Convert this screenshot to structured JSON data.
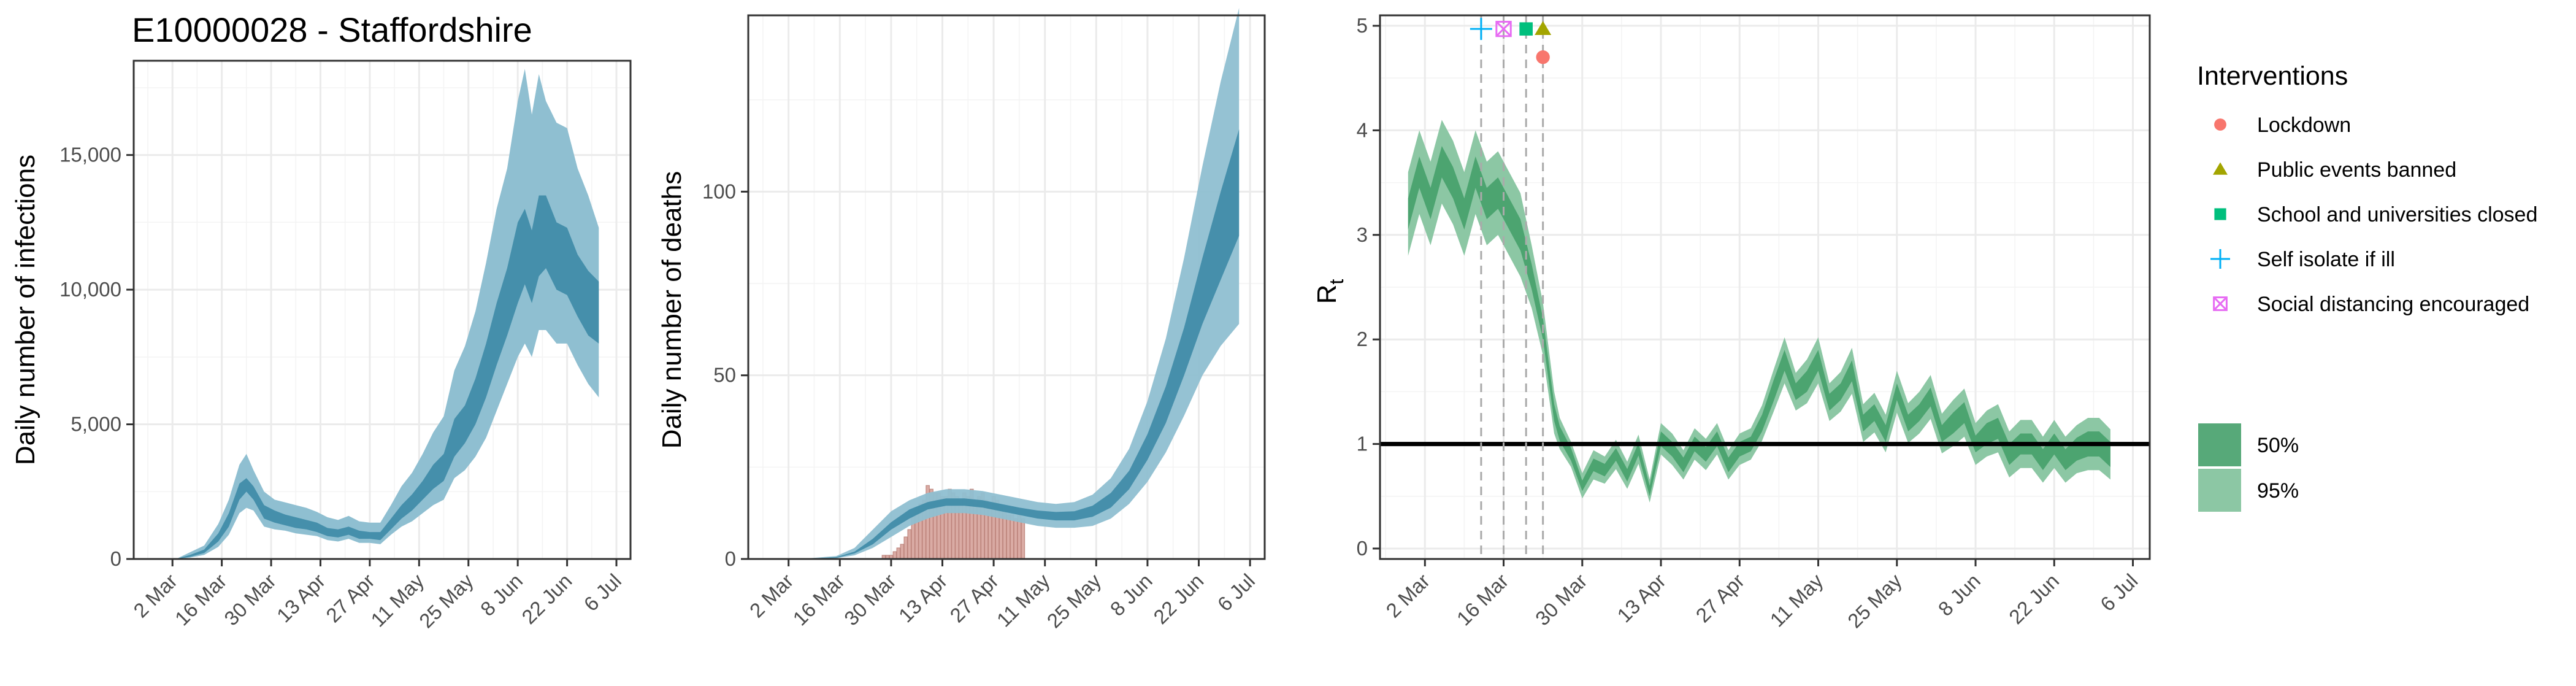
{
  "title": "E10000028 - Staffordshire",
  "colors": {
    "blue_dark": "#3d89a6",
    "blue_light": "#8fbfd1",
    "green_dark": "#45a06a",
    "green_light": "#8cc7a4",
    "bars": "#d7a29b",
    "bars_edge": "#b97d74",
    "hline": "#000000",
    "lockdown": "#F8766D",
    "public_events": "#A3A500",
    "school": "#00BF7D",
    "self_isolate": "#00B0F6",
    "social_distancing": "#E76BF3"
  },
  "chart_data": [
    {
      "type": "area",
      "id": "infections",
      "title": "E10000028 - Staffordshire",
      "xlabel": "",
      "ylabel": "Daily number of infections",
      "xlim": [
        "2020-02-20",
        "2020-07-10"
      ],
      "ylim": [
        0,
        18500
      ],
      "x_ticks": [
        "2 Mar",
        "16 Mar",
        "30 Mar",
        "13 Apr",
        "27 Apr",
        "11 May",
        "25 May",
        "8 Jun",
        "22 Jun",
        "6 Jul"
      ],
      "y_ticks": [
        "0",
        "5,000",
        "10,000",
        "15,000"
      ],
      "y_tick_values": [
        0,
        5000,
        10000,
        15000
      ],
      "series": [
        {
          "x": [
            "2020-02-28",
            "2020-03-03",
            "2020-03-07",
            "2020-03-11",
            "2020-03-15",
            "2020-03-18",
            "2020-03-21",
            "2020-03-23",
            "2020-03-25",
            "2020-03-28",
            "2020-03-31",
            "2020-04-03",
            "2020-04-06",
            "2020-04-09",
            "2020-04-12",
            "2020-04-15",
            "2020-04-18",
            "2020-04-21",
            "2020-04-24",
            "2020-04-27",
            "2020-04-30",
            "2020-05-03",
            "2020-05-06",
            "2020-05-09",
            "2020-05-12",
            "2020-05-15",
            "2020-05-18",
            "2020-05-21",
            "2020-05-24",
            "2020-05-27",
            "2020-05-30",
            "2020-06-02",
            "2020-06-05",
            "2020-06-08",
            "2020-06-10",
            "2020-06-12",
            "2020-06-14",
            "2020-06-16",
            "2020-06-19",
            "2020-06-22",
            "2020-06-25",
            "2020-06-28",
            "2020-07-01"
          ],
          "lo95": [
            0,
            0,
            50,
            150,
            450,
            900,
            1700,
            1900,
            1800,
            1200,
            1100,
            1050,
            950,
            900,
            850,
            700,
            650,
            750,
            600,
            600,
            550,
            900,
            1200,
            1400,
            1700,
            2000,
            2200,
            3000,
            3300,
            3800,
            4500,
            5500,
            6500,
            7500,
            8000,
            7500,
            8500,
            8500,
            8000,
            8000,
            7200,
            6500,
            6000
          ],
          "lo50": [
            0,
            0,
            80,
            220,
            650,
            1200,
            2200,
            2500,
            2200,
            1500,
            1350,
            1250,
            1150,
            1100,
            1000,
            850,
            800,
            900,
            750,
            750,
            700,
            1100,
            1500,
            1800,
            2200,
            2600,
            2900,
            3800,
            4300,
            5000,
            6000,
            7200,
            8300,
            9500,
            10200,
            9500,
            10500,
            10800,
            10000,
            9800,
            9000,
            8300,
            8000
          ],
          "hi50": [
            0,
            0,
            150,
            350,
            950,
            1700,
            2800,
            3000,
            2700,
            2000,
            1800,
            1650,
            1550,
            1450,
            1350,
            1150,
            1100,
            1200,
            1050,
            1000,
            1000,
            1500,
            2000,
            2400,
            2900,
            3500,
            3900,
            5200,
            5700,
            6700,
            8000,
            9500,
            10800,
            12500,
            13000,
            12200,
            13500,
            13500,
            12500,
            12300,
            11300,
            10700,
            10300
          ],
          "hi95": [
            0,
            0,
            250,
            500,
            1300,
            2200,
            3500,
            3900,
            3300,
            2500,
            2200,
            2100,
            2000,
            1900,
            1750,
            1550,
            1450,
            1600,
            1400,
            1350,
            1350,
            2000,
            2700,
            3200,
            3900,
            4700,
            5300,
            7000,
            7900,
            9200,
            11000,
            13000,
            14500,
            17000,
            18200,
            16500,
            18000,
            17000,
            16200,
            16000,
            14500,
            13500,
            12300
          ]
        }
      ]
    },
    {
      "type": "bar",
      "id": "deaths",
      "title": "",
      "xlabel": "",
      "ylabel": "Daily number of deaths",
      "xlim": [
        "2020-02-20",
        "2020-07-10"
      ],
      "ylim": [
        0,
        148
      ],
      "x_ticks": [
        "2 Mar",
        "16 Mar",
        "30 Mar",
        "13 Apr",
        "27 Apr",
        "11 May",
        "25 May",
        "8 Jun",
        "22 Jun",
        "6 Jul"
      ],
      "y_ticks": [
        "0",
        "50",
        "100"
      ],
      "y_tick_values": [
        0,
        50,
        100
      ],
      "bars": {
        "start": "2020-03-28",
        "values": [
          1,
          1,
          1,
          2,
          3,
          4,
          6,
          8,
          12,
          14,
          15,
          16,
          20,
          19,
          18,
          18,
          17,
          17,
          19,
          18,
          17,
          16,
          18,
          17,
          19,
          15,
          17,
          18,
          16,
          14,
          17,
          16,
          14,
          13,
          12,
          12,
          11,
          12,
          11
        ]
      },
      "series": [
        {
          "x": [
            "2020-03-05",
            "2020-03-15",
            "2020-03-20",
            "2020-03-25",
            "2020-03-30",
            "2020-04-04",
            "2020-04-09",
            "2020-04-14",
            "2020-04-19",
            "2020-04-24",
            "2020-04-29",
            "2020-05-04",
            "2020-05-09",
            "2020-05-14",
            "2020-05-19",
            "2020-05-24",
            "2020-05-29",
            "2020-06-03",
            "2020-06-08",
            "2020-06-13",
            "2020-06-18",
            "2020-06-23",
            "2020-06-28",
            "2020-07-03"
          ],
          "lo95": [
            0,
            0.2,
            1,
            3,
            6,
            9,
            11,
            12.5,
            12.5,
            12,
            11,
            10,
            9,
            8.5,
            8.5,
            9,
            11,
            15,
            21,
            29,
            39,
            50,
            58,
            64
          ],
          "lo50": [
            0,
            0.3,
            1.5,
            4,
            8,
            11,
            13.5,
            14.5,
            14.5,
            14,
            13,
            12,
            11,
            10.5,
            10.5,
            11.5,
            14,
            19,
            27,
            37,
            50,
            64,
            76,
            88
          ],
          "hi50": [
            0,
            0.5,
            2,
            5.5,
            10,
            13.5,
            15.5,
            16.5,
            16.5,
            16,
            15,
            14,
            13.2,
            12.8,
            13,
            14.5,
            18,
            24,
            34,
            47,
            63,
            82,
            100,
            117
          ],
          "hi95": [
            0,
            0.8,
            3,
            8,
            13,
            16,
            18,
            19,
            19,
            18.5,
            17.5,
            16.5,
            15.5,
            15,
            15.5,
            17.5,
            22,
            30,
            43,
            60,
            82,
            107,
            130,
            150
          ]
        }
      ]
    },
    {
      "type": "area",
      "id": "rt",
      "title": "",
      "xlabel": "",
      "ylabel": "R",
      "ylabel_sub": "t",
      "xlim": [
        "2020-02-23",
        "2020-07-09"
      ],
      "ylim": [
        -0.1,
        5.1
      ],
      "x_ticks": [
        "2 Mar",
        "16 Mar",
        "30 Mar",
        "13 Apr",
        "27 Apr",
        "11 May",
        "25 May",
        "8 Jun",
        "22 Jun",
        "6 Jul"
      ],
      "y_ticks": [
        "0",
        "1",
        "2",
        "3",
        "4",
        "5"
      ],
      "y_tick_values": [
        0,
        1,
        2,
        3,
        4,
        5
      ],
      "hline": 1,
      "series": [
        {
          "x": [
            "2020-02-28",
            "2020-03-01",
            "2020-03-03",
            "2020-03-05",
            "2020-03-07",
            "2020-03-09",
            "2020-03-11",
            "2020-03-13",
            "2020-03-15",
            "2020-03-17",
            "2020-03-19",
            "2020-03-21",
            "2020-03-23",
            "2020-03-25",
            "2020-03-26",
            "2020-03-28",
            "2020-03-30",
            "2020-04-01",
            "2020-04-03",
            "2020-04-05",
            "2020-04-07",
            "2020-04-09",
            "2020-04-11",
            "2020-04-13",
            "2020-04-15",
            "2020-04-17",
            "2020-04-19",
            "2020-04-21",
            "2020-04-23",
            "2020-04-25",
            "2020-04-27",
            "2020-04-29",
            "2020-05-01",
            "2020-05-03",
            "2020-05-05",
            "2020-05-07",
            "2020-05-09",
            "2020-05-11",
            "2020-05-13",
            "2020-05-15",
            "2020-05-17",
            "2020-05-19",
            "2020-05-21",
            "2020-05-23",
            "2020-05-25",
            "2020-05-27",
            "2020-05-29",
            "2020-05-31",
            "2020-06-02",
            "2020-06-04",
            "2020-06-06",
            "2020-06-08",
            "2020-06-10",
            "2020-06-12",
            "2020-06-14",
            "2020-06-16",
            "2020-06-18",
            "2020-06-20",
            "2020-06-22",
            "2020-06-24",
            "2020-06-26",
            "2020-06-28",
            "2020-06-30",
            "2020-07-02"
          ],
          "mid": [
            3.2,
            3.6,
            3.3,
            3.7,
            3.5,
            3.2,
            3.6,
            3.3,
            3.4,
            3.2,
            3.0,
            2.6,
            2.1,
            1.3,
            1.1,
            0.9,
            0.6,
            0.8,
            0.75,
            0.9,
            0.7,
            0.95,
            0.55,
            1.05,
            0.95,
            0.8,
            1.0,
            0.9,
            1.05,
            0.8,
            0.95,
            1.0,
            1.2,
            1.5,
            1.8,
            1.5,
            1.6,
            1.8,
            1.4,
            1.5,
            1.7,
            1.2,
            1.3,
            1.1,
            1.5,
            1.2,
            1.3,
            1.45,
            1.1,
            1.2,
            1.3,
            1.0,
            1.1,
            1.15,
            0.9,
            1.0,
            1.0,
            0.85,
            1.0,
            0.85,
            0.95,
            1.0,
            1.0,
            0.9
          ],
          "lo50": [
            3.05,
            3.45,
            3.15,
            3.55,
            3.35,
            3.05,
            3.45,
            3.15,
            3.25,
            3.05,
            2.85,
            2.48,
            2.0,
            1.22,
            1.03,
            0.84,
            0.55,
            0.74,
            0.69,
            0.84,
            0.64,
            0.89,
            0.5,
            0.98,
            0.88,
            0.73,
            0.93,
            0.83,
            0.98,
            0.73,
            0.88,
            0.93,
            1.12,
            1.4,
            1.7,
            1.42,
            1.5,
            1.7,
            1.32,
            1.42,
            1.6,
            1.12,
            1.22,
            1.02,
            1.42,
            1.12,
            1.22,
            1.36,
            1.02,
            1.1,
            1.2,
            0.92,
            1.0,
            1.05,
            0.8,
            0.9,
            0.9,
            0.75,
            0.9,
            0.75,
            0.84,
            0.88,
            0.88,
            0.78
          ],
          "hi50": [
            3.35,
            3.75,
            3.45,
            3.85,
            3.65,
            3.35,
            3.75,
            3.45,
            3.55,
            3.35,
            3.15,
            2.72,
            2.2,
            1.38,
            1.17,
            0.96,
            0.65,
            0.86,
            0.81,
            0.96,
            0.76,
            1.01,
            0.6,
            1.12,
            1.02,
            0.87,
            1.07,
            0.97,
            1.12,
            0.87,
            1.02,
            1.07,
            1.28,
            1.6,
            1.9,
            1.58,
            1.7,
            1.9,
            1.48,
            1.58,
            1.8,
            1.28,
            1.38,
            1.18,
            1.58,
            1.28,
            1.38,
            1.54,
            1.18,
            1.3,
            1.4,
            1.08,
            1.2,
            1.25,
            1.0,
            1.1,
            1.1,
            0.95,
            1.1,
            0.95,
            1.06,
            1.12,
            1.12,
            1.02
          ],
          "lo95": [
            2.8,
            3.2,
            2.9,
            3.3,
            3.1,
            2.8,
            3.2,
            2.9,
            3.0,
            2.8,
            2.6,
            2.3,
            1.85,
            1.1,
            0.95,
            0.78,
            0.48,
            0.66,
            0.62,
            0.76,
            0.57,
            0.81,
            0.44,
            0.9,
            0.8,
            0.66,
            0.85,
            0.75,
            0.9,
            0.66,
            0.8,
            0.85,
            1.03,
            1.3,
            1.58,
            1.32,
            1.39,
            1.58,
            1.22,
            1.31,
            1.48,
            1.02,
            1.11,
            0.92,
            1.3,
            1.01,
            1.1,
            1.24,
            0.91,
            0.98,
            1.07,
            0.8,
            0.88,
            0.92,
            0.68,
            0.77,
            0.77,
            0.63,
            0.77,
            0.63,
            0.72,
            0.75,
            0.75,
            0.66
          ],
          "hi95": [
            3.6,
            4.0,
            3.7,
            4.1,
            3.9,
            3.6,
            4.0,
            3.7,
            3.8,
            3.6,
            3.4,
            2.9,
            2.35,
            1.5,
            1.25,
            1.02,
            0.72,
            0.94,
            0.88,
            1.04,
            0.83,
            1.09,
            0.66,
            1.2,
            1.1,
            0.94,
            1.15,
            1.05,
            1.2,
            0.94,
            1.1,
            1.15,
            1.37,
            1.7,
            2.02,
            1.68,
            1.81,
            2.02,
            1.58,
            1.69,
            1.92,
            1.38,
            1.49,
            1.28,
            1.7,
            1.39,
            1.5,
            1.66,
            1.29,
            1.42,
            1.53,
            1.2,
            1.32,
            1.38,
            1.12,
            1.23,
            1.23,
            1.07,
            1.23,
            1.07,
            1.18,
            1.25,
            1.25,
            1.14
          ]
        }
      ],
      "interventions": [
        {
          "name": "Lockdown",
          "date": "2020-03-23",
          "y": 4.7,
          "shape": "circle"
        },
        {
          "name": "Public events banned",
          "date": "2020-03-23",
          "y": 4.97,
          "shape": "triangle"
        },
        {
          "name": "School and universities closed",
          "date": "2020-03-20",
          "y": 4.97,
          "shape": "square"
        },
        {
          "name": "Self isolate if ill",
          "date": "2020-03-12",
          "y": 4.97,
          "shape": "plus"
        },
        {
          "name": "Social distancing encouraged",
          "date": "2020-03-16",
          "y": 4.97,
          "shape": "boxx"
        }
      ]
    }
  ],
  "legend": {
    "title": "Interventions",
    "items": [
      "Lockdown",
      "Public events banned",
      "School and universities closed",
      "Self isolate if ill",
      "Social distancing encouraged"
    ],
    "band_items": [
      "50%",
      "95%"
    ]
  }
}
